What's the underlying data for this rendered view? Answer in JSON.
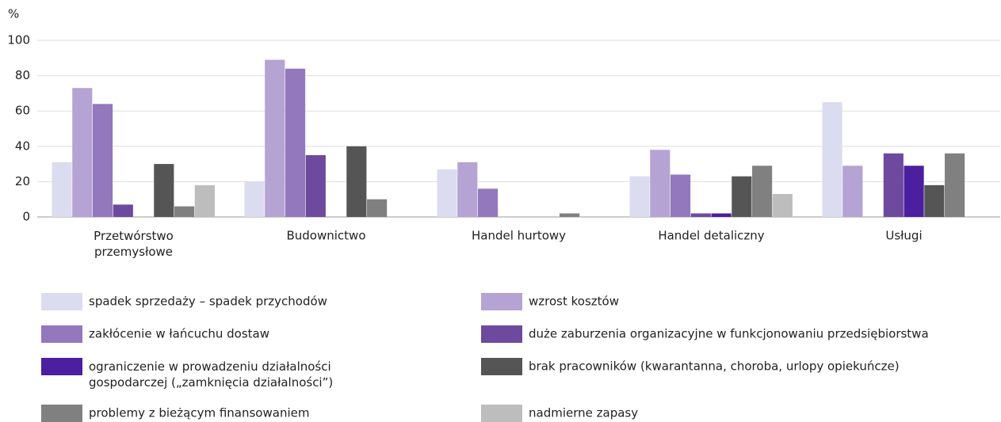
{
  "chart_data": {
    "type": "bar",
    "y_axis_label": "%",
    "categories": [
      "Przetwórstwo\nprzemysłowe",
      "Budownictwo",
      "Handel hurtowy",
      "Handel detaliczny",
      "Usługi"
    ],
    "series": [
      {
        "name": "spadek sprzedaży – spadek przychodów",
        "color": "#dcdcf0",
        "values": [
          31,
          20,
          27,
          23,
          65
        ]
      },
      {
        "name": "wzrost kosztów",
        "color": "#b5a3d3",
        "values": [
          73,
          89,
          31,
          38,
          29
        ]
      },
      {
        "name": "zakłócenie w łańcuchu dostaw",
        "color": "#9478bd",
        "values": [
          64,
          84,
          16,
          24,
          0
        ]
      },
      {
        "name": "duże zaburzenia organizacyjne w funkcjonowaniu przedsiębiorstwa",
        "color": "#6e4a9e",
        "values": [
          7,
          35,
          0,
          2,
          36
        ]
      },
      {
        "name": "ograniczenie w prowadzeniu działalności\ngospodarczej („zamknięcia działalności”)",
        "color": "#4b1fa0",
        "values": [
          0,
          0,
          0,
          2,
          29
        ]
      },
      {
        "name": "brak pracowników (kwarantanna, choroba, urlopy opiekuńcze)",
        "color": "#555555",
        "values": [
          30,
          40,
          0,
          23,
          18
        ]
      },
      {
        "name": "problemy z bieżącym finansowaniem",
        "color": "#808080",
        "values": [
          6,
          10,
          2,
          29,
          36
        ]
      },
      {
        "name": "nadmierne zapasy",
        "color": "#bdbdbd",
        "values": [
          18,
          0,
          0,
          13,
          0
        ]
      }
    ],
    "ylim": [
      0,
      100
    ],
    "yticks": [
      0,
      20,
      40,
      60,
      80,
      100
    ],
    "grid": true
  }
}
